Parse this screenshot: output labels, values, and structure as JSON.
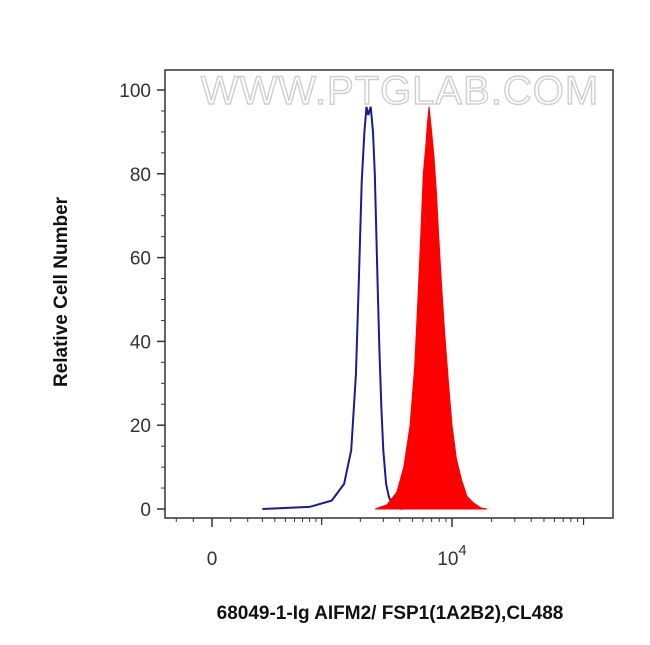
{
  "chart_data": {
    "type": "area",
    "title": "",
    "xlabel": "68049-1-Ig AIFM2/ FSP1(1A2B2),CL488",
    "ylabel": "Relative Cell Number",
    "ylim": [
      0,
      100
    ],
    "yticks": [
      "0",
      "20",
      "40",
      "60",
      "80",
      "100"
    ],
    "xticks": [
      {
        "value": 0,
        "label": "0"
      },
      {
        "value": 10000,
        "label": "10",
        "exponent": "4"
      }
    ],
    "x_scale": "biexponential",
    "grid": false,
    "legend": "none",
    "watermark": "WWW.PTGLAB.COM",
    "series": [
      {
        "style": "outline",
        "color": "#1b1b8f",
        "x": [
          300,
          800,
          1200,
          1500,
          1700,
          1850,
          1950,
          2050,
          2150,
          2230,
          2300,
          2400,
          2500,
          2580,
          2650,
          2720,
          2800,
          2900,
          3000,
          3150,
          3300,
          3500,
          3800,
          4200
        ],
        "y": [
          0,
          0.5,
          2,
          6,
          14,
          32,
          55,
          78,
          90,
          96,
          94,
          96,
          90,
          80,
          66,
          52,
          38,
          24,
          14,
          6,
          3,
          1,
          0.3,
          0
        ]
      },
      {
        "style": "filled",
        "color": "#ff0000",
        "x": [
          2600,
          3200,
          3800,
          4300,
          4800,
          5200,
          5500,
          5800,
          6050,
          6300,
          6500,
          6700,
          6900,
          7100,
          7300,
          7600,
          7900,
          8300,
          8800,
          9400,
          10000,
          10800,
          11800,
          13000,
          14500,
          16500,
          18500
        ],
        "y": [
          0,
          1,
          4,
          10,
          20,
          34,
          50,
          66,
          80,
          86,
          92,
          96,
          92,
          88,
          84,
          76,
          66,
          54,
          42,
          30,
          20,
          12,
          7,
          3,
          1.5,
          0.3,
          0
        ]
      }
    ]
  }
}
